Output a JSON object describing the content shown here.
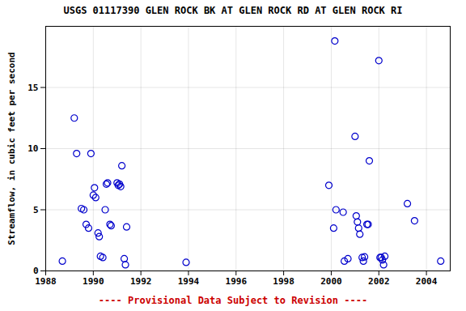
{
  "chart_data": {
    "type": "scatter",
    "title": "USGS 01117390 GLEN ROCK BK AT GLEN ROCK RD AT GLEN ROCK RI",
    "ylabel": "Streamflow, in cubic feet per second",
    "annotations": [
      {
        "text": "---- Provisional Data Subject to Revision ----",
        "color": "#cc0000"
      }
    ],
    "x": [
      1988.7,
      1989.2,
      1989.3,
      1989.5,
      1989.6,
      1989.7,
      1989.8,
      1989.9,
      1990.0,
      1990.05,
      1990.1,
      1990.2,
      1990.25,
      1990.3,
      1990.4,
      1990.5,
      1990.55,
      1990.6,
      1990.7,
      1990.75,
      1991.0,
      1991.05,
      1991.1,
      1991.15,
      1991.2,
      1991.3,
      1991.35,
      1991.4,
      1993.9,
      1999.9,
      2000.1,
      2000.15,
      2000.2,
      2000.5,
      2000.55,
      2000.7,
      2001.0,
      2001.05,
      2001.1,
      2001.15,
      2001.2,
      2001.3,
      2001.35,
      2001.4,
      2001.5,
      2001.55,
      2001.6,
      2002.0,
      2002.05,
      2002.1,
      2002.15,
      2002.2,
      2002.25,
      2003.2,
      2003.5,
      2004.6
    ],
    "values": [
      0.8,
      12.5,
      9.6,
      5.1,
      5.0,
      3.8,
      3.5,
      9.6,
      6.2,
      6.8,
      6.0,
      3.1,
      2.8,
      1.2,
      1.1,
      5.0,
      7.1,
      7.2,
      3.8,
      3.7,
      7.2,
      7.0,
      7.1,
      6.9,
      8.6,
      1.0,
      0.5,
      3.6,
      0.7,
      7.0,
      3.5,
      18.8,
      5.0,
      4.8,
      0.8,
      1.0,
      11.0,
      4.5,
      4.0,
      3.5,
      3.0,
      1.1,
      0.8,
      1.15,
      3.8,
      3.8,
      9.0,
      17.2,
      1.1,
      1.1,
      0.9,
      0.5,
      1.2,
      5.5,
      4.1,
      0.8
    ],
    "color": "#0000CC",
    "marker": "open_circle",
    "xlim": [
      1988,
      2005
    ],
    "xticks": [
      1988,
      1990,
      1992,
      1994,
      1996,
      1998,
      2000,
      2002,
      2004
    ],
    "ylim": [
      0,
      20
    ],
    "yticks": [
      0,
      5,
      10,
      15
    ],
    "grid": true
  }
}
